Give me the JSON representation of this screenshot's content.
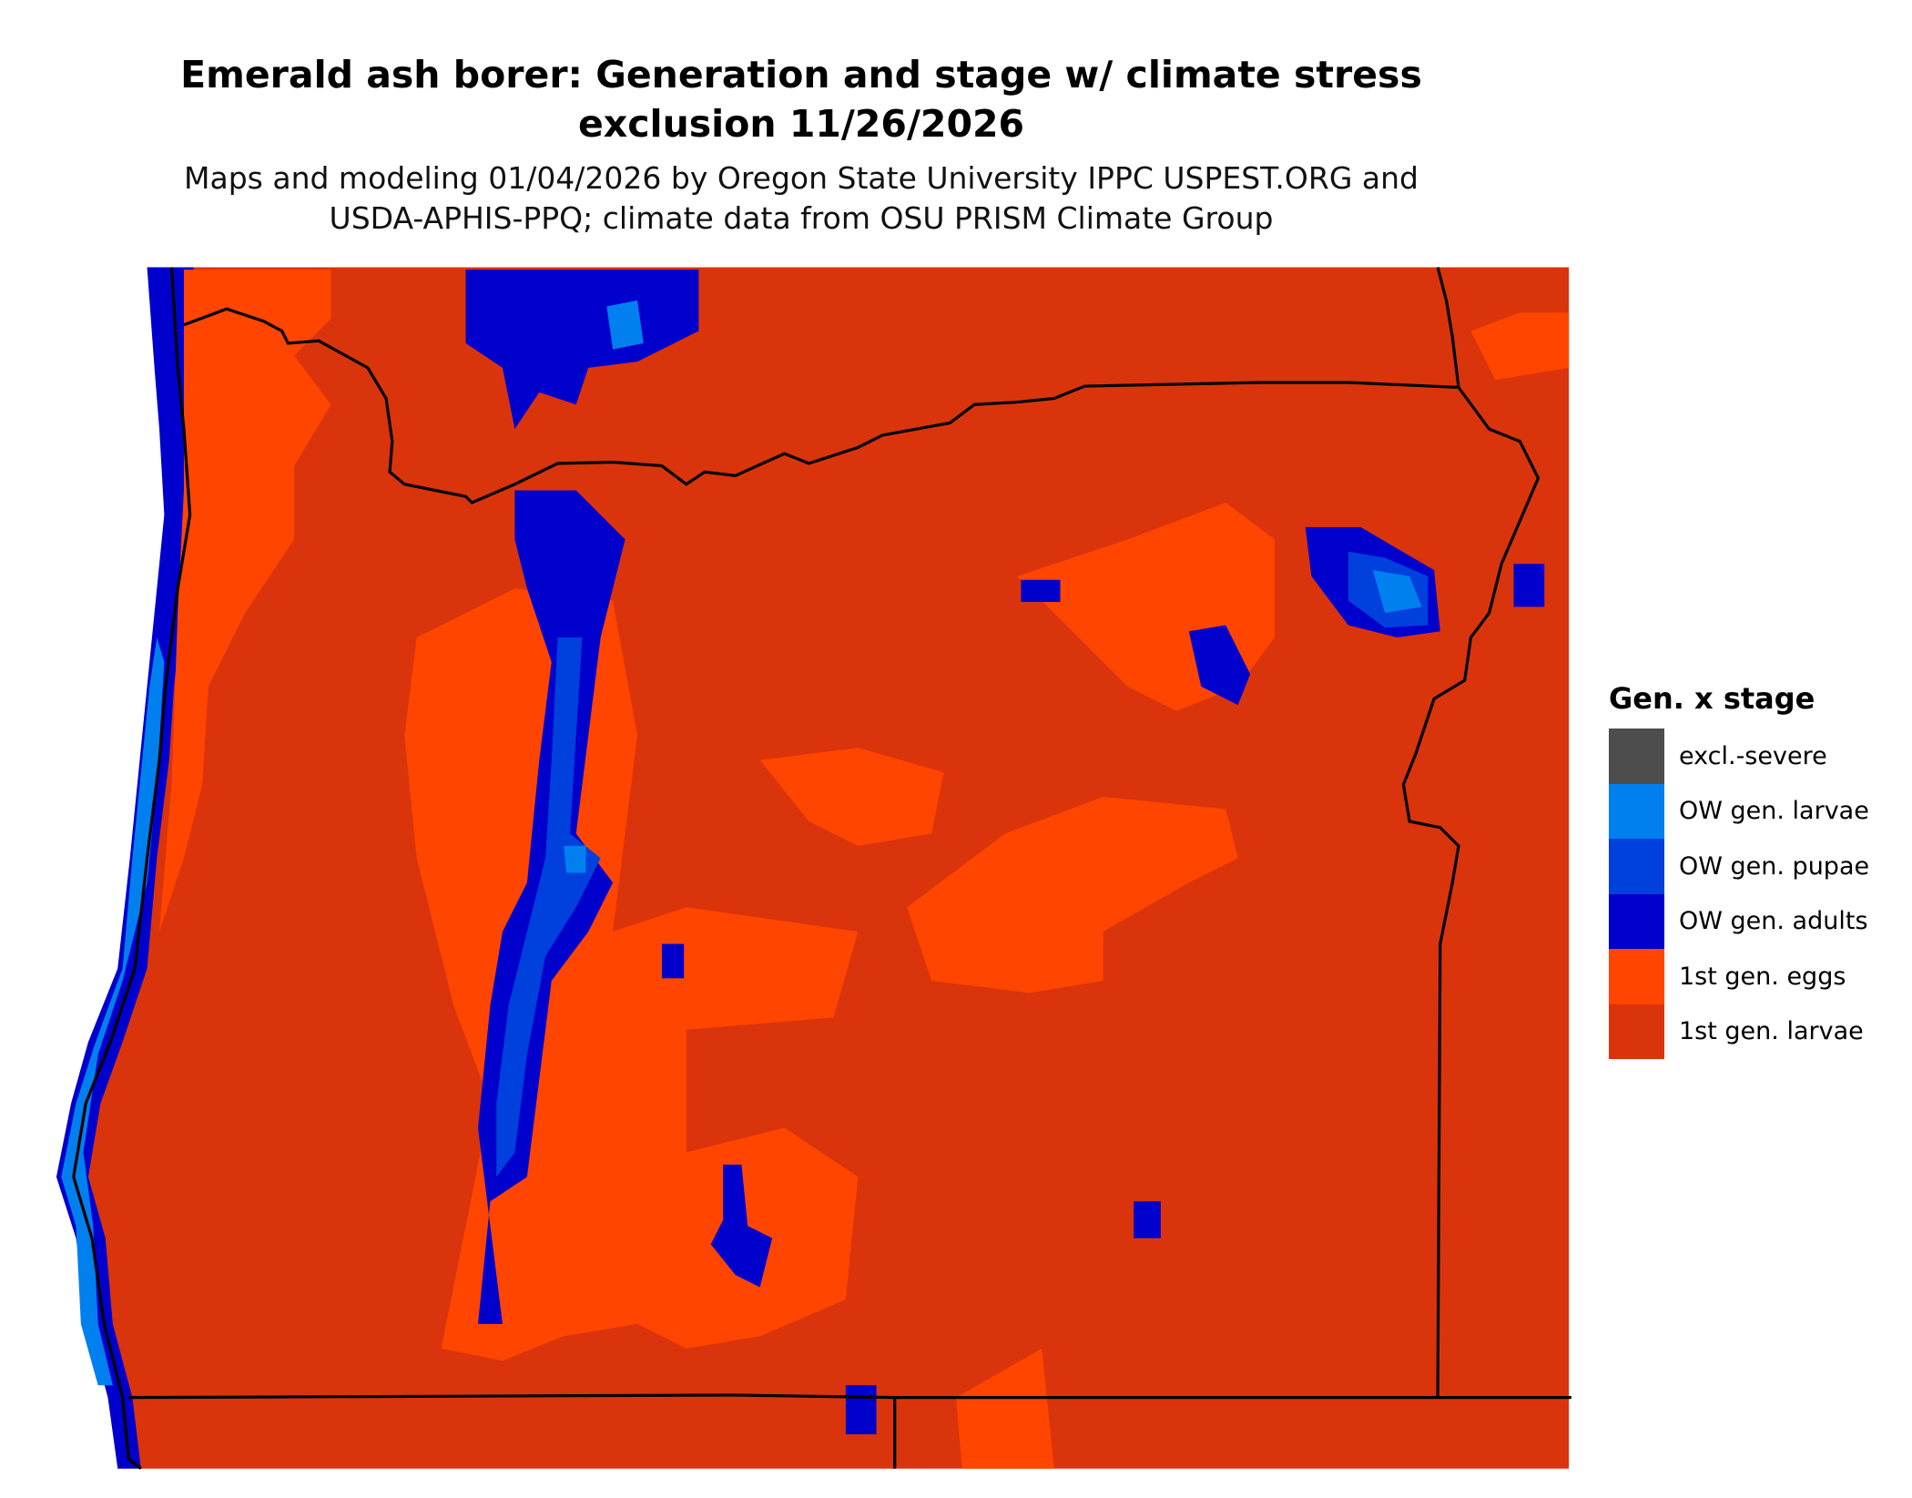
{
  "title": {
    "line1": "Emerald ash borer: Generation and stage w/ climate stress",
    "line2": "exclusion 11/26/2026"
  },
  "subtitle": {
    "line1": "Maps and modeling 01/04/2026 by Oregon State University IPPC USPEST.ORG and",
    "line2": "USDA-APHIS-PPQ; climate data from OSU PRISM Climate Group"
  },
  "legend": {
    "title": "Gen. x stage",
    "items": [
      {
        "label": "excl.-severe",
        "color": "#4D4D4D"
      },
      {
        "label": "OW gen. larvae",
        "color": "#0080EE"
      },
      {
        "label": "OW gen. pupae",
        "color": "#0040DD"
      },
      {
        "label": "OW gen. adults",
        "color": "#0000CD"
      },
      {
        "label": "1st gen. eggs",
        "color": "#FF4500"
      },
      {
        "label": "1st gen. larvae",
        "color": "#DA340C"
      }
    ]
  },
  "map": {
    "boundary_color": "#000000"
  }
}
